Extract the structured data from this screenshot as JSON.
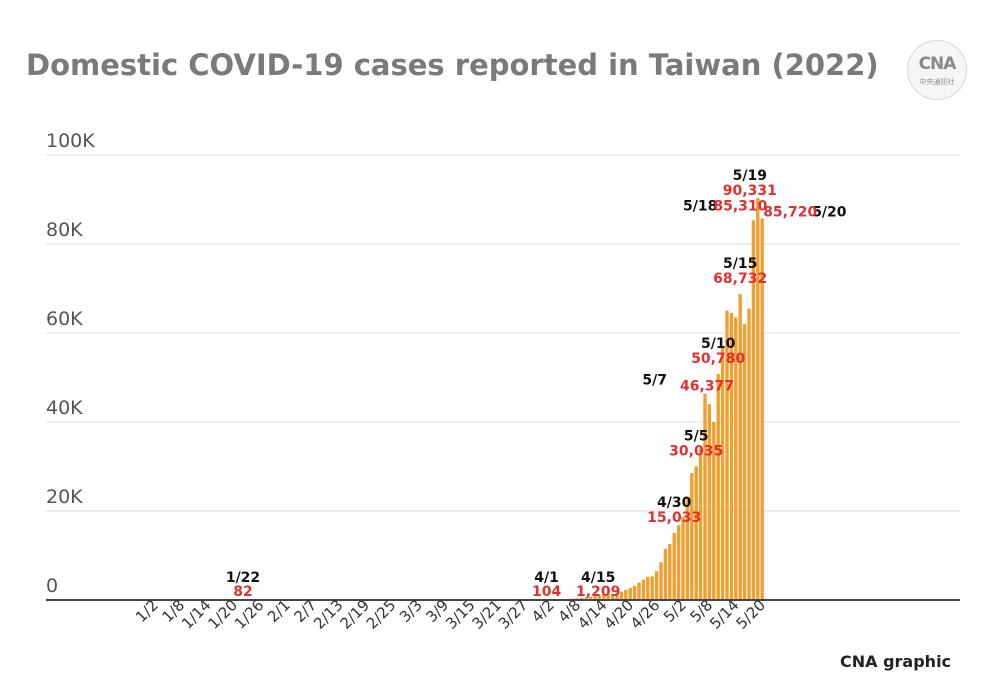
{
  "chart_data": {
    "type": "bar",
    "title": "Domestic COVID-19 cases reported in Taiwan (2022)",
    "xlabel": "",
    "ylabel": "",
    "ylim": [
      0,
      100000
    ],
    "y_ticks": [
      {
        "value": 0,
        "label": "0"
      },
      {
        "value": 20000,
        "label": "20K"
      },
      {
        "value": 40000,
        "label": "40K"
      },
      {
        "value": 60000,
        "label": "60K"
      },
      {
        "value": 80000,
        "label": "80K"
      },
      {
        "value": 100000,
        "label": "100K"
      }
    ],
    "x_start": "2022-01-01",
    "x_end": "2022-06-20",
    "x_tick_labels": [
      "1/2",
      "1/8",
      "1/14",
      "1/20",
      "1/26",
      "2/1",
      "2/7",
      "2/13",
      "2/19",
      "2/25",
      "3/3",
      "3/9",
      "3/15",
      "3/21",
      "3/27",
      "4/2",
      "4/8",
      "4/14",
      "4/20",
      "4/26",
      "5/2",
      "5/8",
      "5/14",
      "5/20"
    ],
    "bar_color": "#f0a030",
    "grid": true,
    "series": [
      {
        "dates": [
          "1/22",
          "4/1",
          "4/2",
          "4/3",
          "4/4",
          "4/5",
          "4/6",
          "4/7",
          "4/8",
          "4/9",
          "4/10",
          "4/11",
          "4/12",
          "4/13",
          "4/14",
          "4/15",
          "4/16",
          "4/17",
          "4/18",
          "4/19",
          "4/20",
          "4/21",
          "4/22",
          "4/23",
          "4/24",
          "4/25",
          "4/26",
          "4/27",
          "4/28",
          "4/29",
          "4/30",
          "5/1",
          "5/2",
          "5/3",
          "5/4",
          "5/5",
          "5/6",
          "5/7",
          "5/8",
          "5/9",
          "5/10",
          "5/11",
          "5/12",
          "5/13",
          "5/14",
          "5/15",
          "5/16",
          "5/17",
          "5/18",
          "5/19",
          "5/20"
        ],
        "values": [
          82,
          104,
          110,
          130,
          160,
          200,
          260,
          320,
          400,
          500,
          600,
          720,
          850,
          1000,
          1100,
          1209,
          1350,
          1600,
          1900,
          2300,
          2700,
          3200,
          3900,
          4600,
          5200,
          5300,
          6500,
          8500,
          11500,
          12600,
          15033,
          16800,
          18700,
          23100,
          28500,
          30035,
          34000,
          46377,
          44000,
          40000,
          50780,
          57000,
          65000,
          64500,
          63500,
          68732,
          62000,
          65500,
          85310,
          90331,
          85720
        ]
      }
    ],
    "annotations": [
      {
        "date": "1/22",
        "date_label": "1/22",
        "value_label": "82"
      },
      {
        "date": "4/1",
        "date_label": "4/1",
        "value_label": "104"
      },
      {
        "date": "4/15",
        "date_label": "4/15",
        "value_label": "1,209"
      },
      {
        "date": "4/30",
        "date_label": "4/30",
        "value_label": "15,033"
      },
      {
        "date": "5/5",
        "date_label": "5/5",
        "value_label": "30,035"
      },
      {
        "date": "5/7",
        "date_label": "5/7",
        "value_label": "46,377"
      },
      {
        "date": "5/10",
        "date_label": "5/10",
        "value_label": "50,780"
      },
      {
        "date": "5/15",
        "date_label": "5/15",
        "value_label": "68,732"
      },
      {
        "date": "5/18",
        "date_label": "5/18",
        "value_label": "85,310"
      },
      {
        "date": "5/19",
        "date_label": "5/19",
        "value_label": "90,331"
      },
      {
        "date": "5/20",
        "date_label": "5/20",
        "value_label": "85,720"
      }
    ]
  },
  "logo": {
    "text": "CNA",
    "subtext": "中央通訊社"
  },
  "credit": "CNA graphic"
}
